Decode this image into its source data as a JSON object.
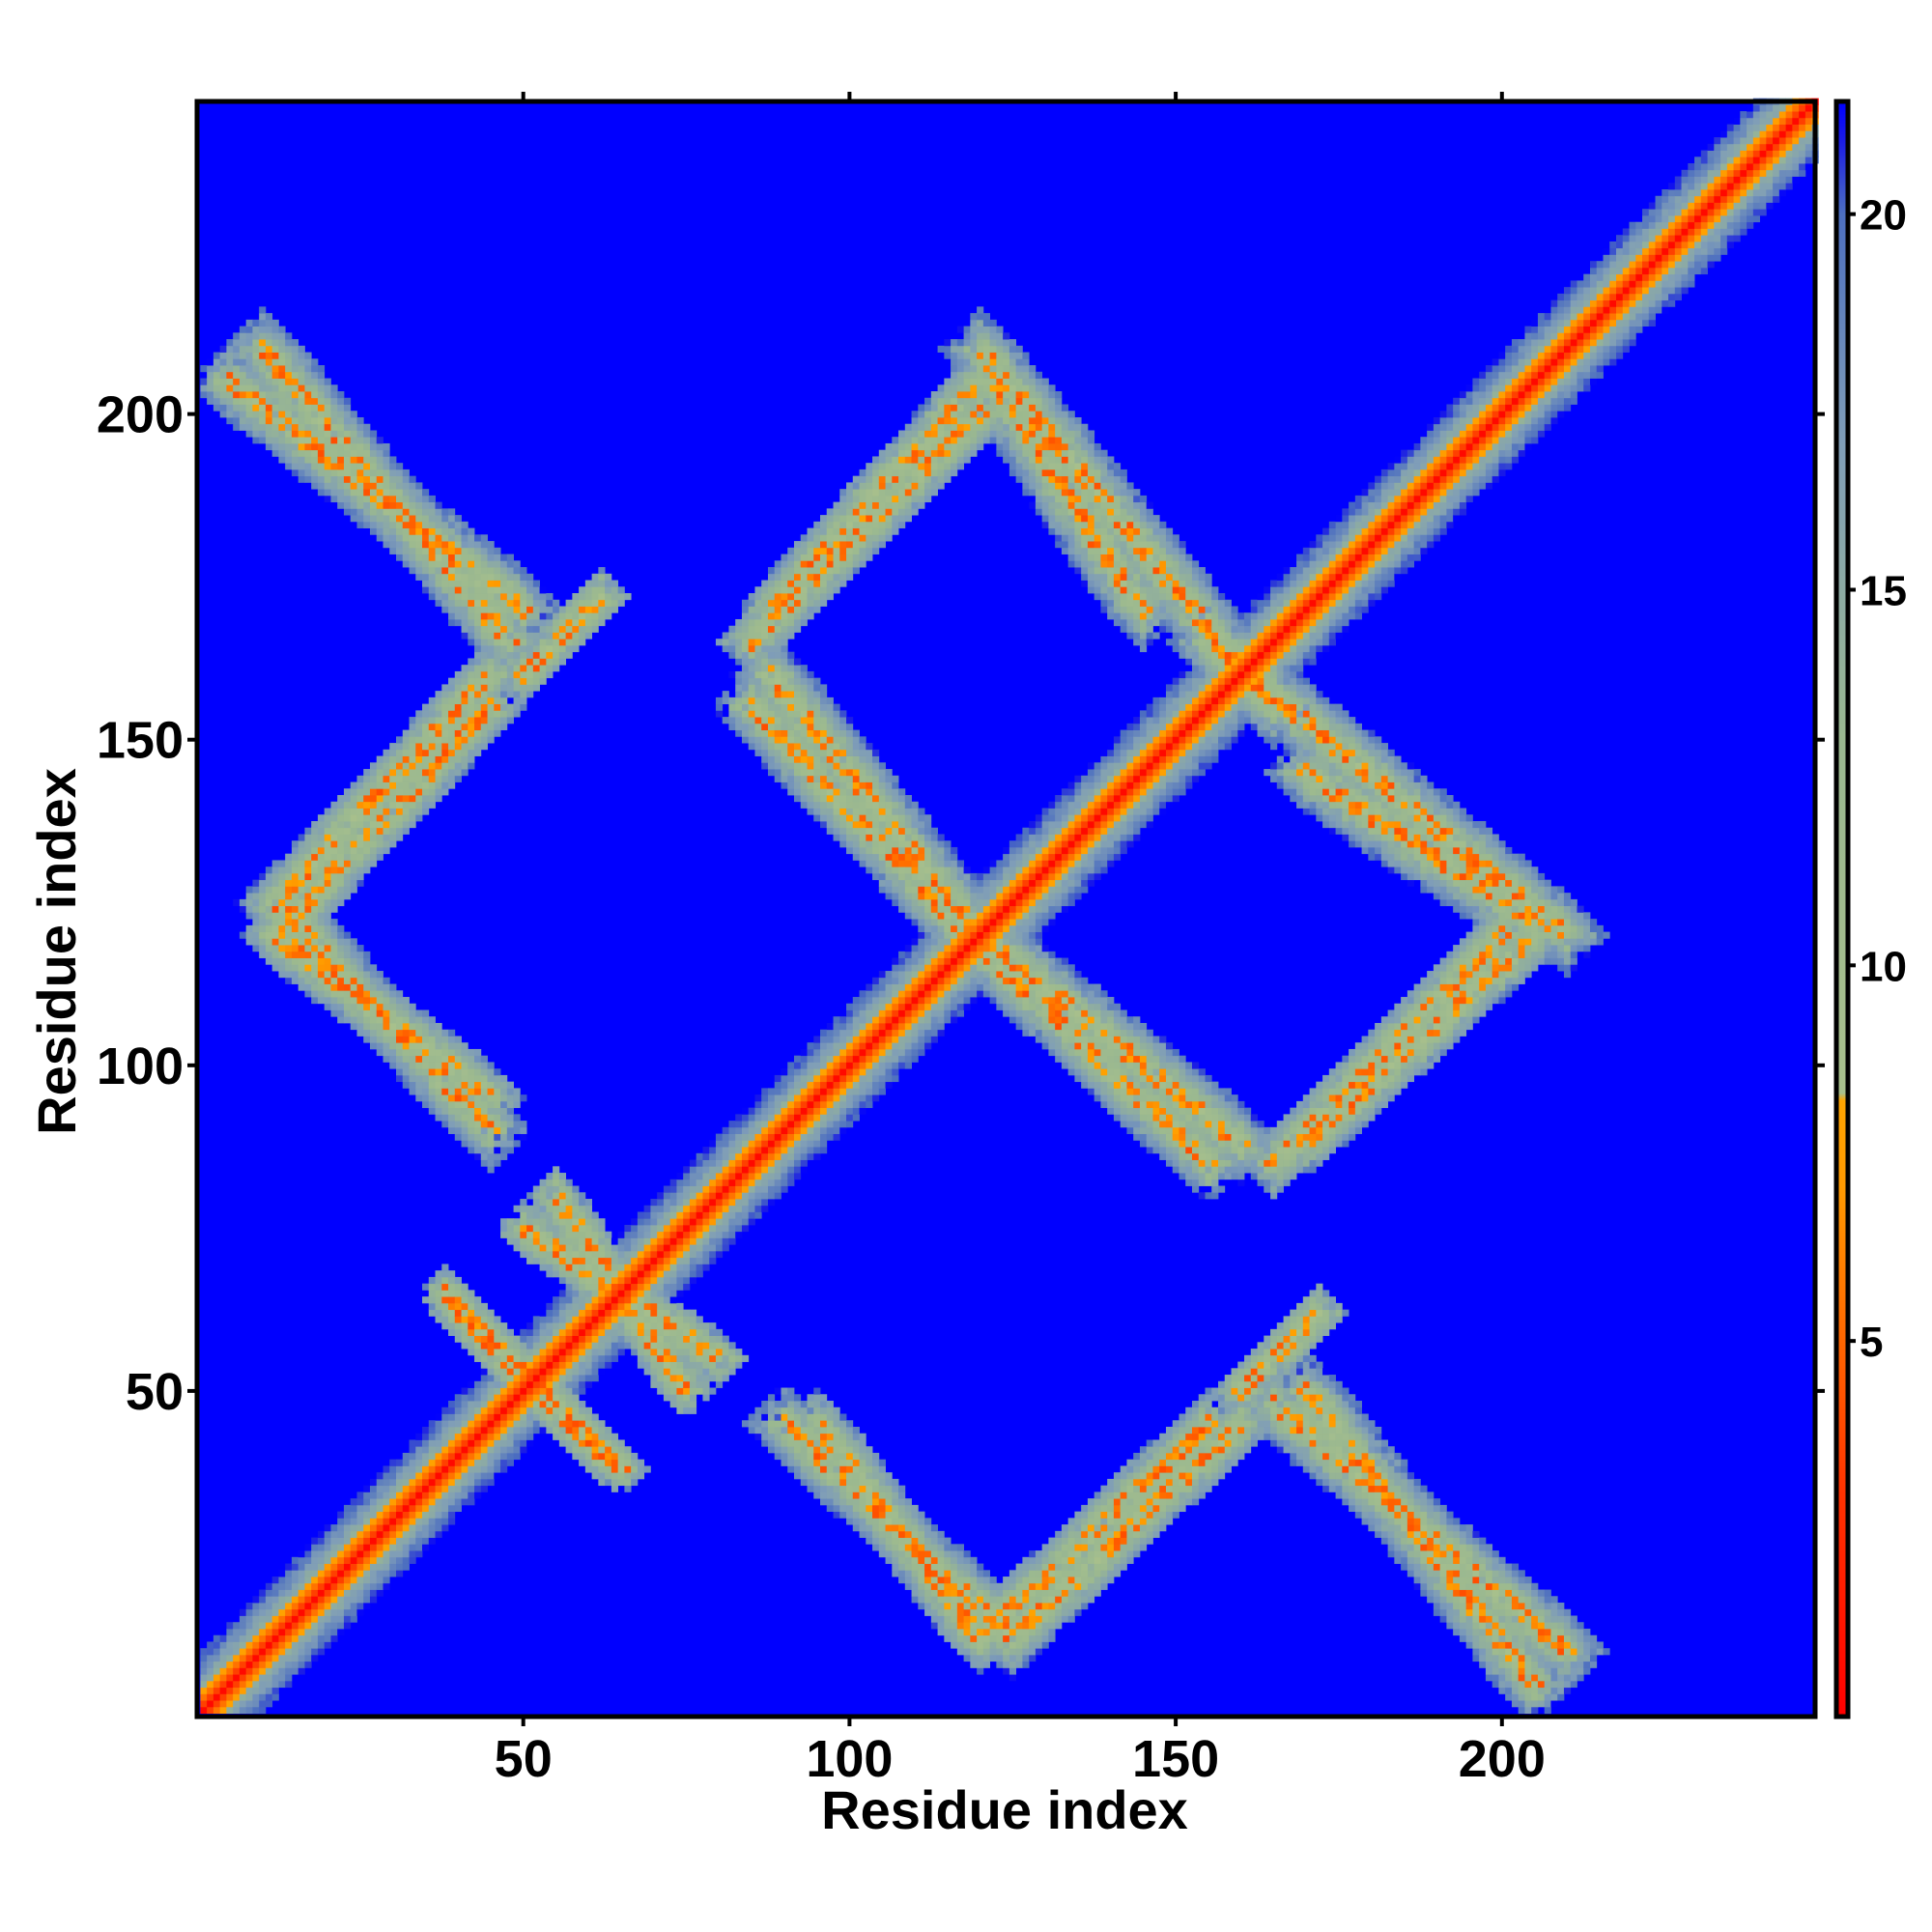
{
  "chart_data": {
    "type": "heatmap",
    "title": "",
    "xlabel": "Residue index",
    "ylabel": "Residue index",
    "xlim": [
      1,
      248
    ],
    "ylim": [
      1,
      248
    ],
    "x_ticks": [
      50,
      100,
      150,
      200
    ],
    "y_ticks": [
      50,
      100,
      150,
      200
    ],
    "colorbar": {
      "range": [
        0,
        21.5
      ],
      "ticks": [
        5,
        10,
        15,
        20
      ],
      "stops": [
        {
          "value": 0,
          "color": "#ff0000"
        },
        {
          "value": 3,
          "color": "#ff3300"
        },
        {
          "value": 5,
          "color": "#ff6600"
        },
        {
          "value": 7,
          "color": "#ff9900"
        },
        {
          "value": 8.2,
          "color": "#ffa500"
        },
        {
          "value": 8.3,
          "color": "#a8c08c"
        },
        {
          "value": 13,
          "color": "#9ab890"
        },
        {
          "value": 17,
          "color": "#7f9db8"
        },
        {
          "value": 20,
          "color": "#4d6fc0"
        },
        {
          "value": 21,
          "color": "#1a1ae6"
        },
        {
          "value": 21.5,
          "color": "#0000ff"
        }
      ]
    },
    "background_value": 21.5,
    "matrix_description_bands": {
      "diagonal": {
        "from": 1,
        "to": 248
      },
      "segments": [
        {
          "name": "antiparallel",
          "i": [
            5,
            50
          ],
          "j": [
            205,
            170
          ],
          "width": 6
        },
        {
          "name": "antiparallel",
          "i": [
            50,
            62
          ],
          "j": [
            160,
            172
          ],
          "width": 4
        },
        {
          "name": "parallel",
          "i": [
            12,
            45
          ],
          "j": [
            120,
            155
          ],
          "width": 5
        },
        {
          "name": "antiparallel",
          "i": [
            12,
            45
          ],
          "j": [
            120,
            95
          ],
          "width": 5
        },
        {
          "name": "antiparallel",
          "i": [
            85,
            118
          ],
          "j": [
            155,
            120
          ],
          "width": 6
        },
        {
          "name": "antiparallel",
          "i": [
            120,
            160
          ],
          "j": [
            120,
            88
          ],
          "width": 6
        },
        {
          "name": "antiparallel",
          "i": [
            122,
            145
          ],
          "j": [
            205,
            170
          ],
          "width": 6
        },
        {
          "name": "parallel",
          "i": [
            88,
            120
          ],
          "j": [
            170,
            205
          ],
          "width": 5
        },
        {
          "name": "antiparallel",
          "i": [
            155,
            210
          ],
          "j": [
            165,
            120
          ],
          "width": 6
        },
        {
          "name": "parallel",
          "i": [
            165,
            200
          ],
          "j": [
            85,
            120
          ],
          "width": 5
        },
        {
          "name": "antiparallel",
          "i": [
            90,
            125
          ],
          "j": [
            45,
            12
          ],
          "width": 6
        },
        {
          "name": "parallel",
          "i": [
            125,
            160
          ],
          "j": [
            12,
            45
          ],
          "width": 5
        },
        {
          "name": "antiparallel",
          "i": [
            165,
            210
          ],
          "j": [
            48,
            10
          ],
          "width": 6
        },
        {
          "name": "antiparallel",
          "i": [
            50,
            80
          ],
          "j": [
            75,
            55
          ],
          "width": 4
        },
        {
          "name": "antiparallel",
          "i": [
            40,
            65
          ],
          "j": [
            62,
            38
          ],
          "width": 4
        }
      ]
    }
  }
}
